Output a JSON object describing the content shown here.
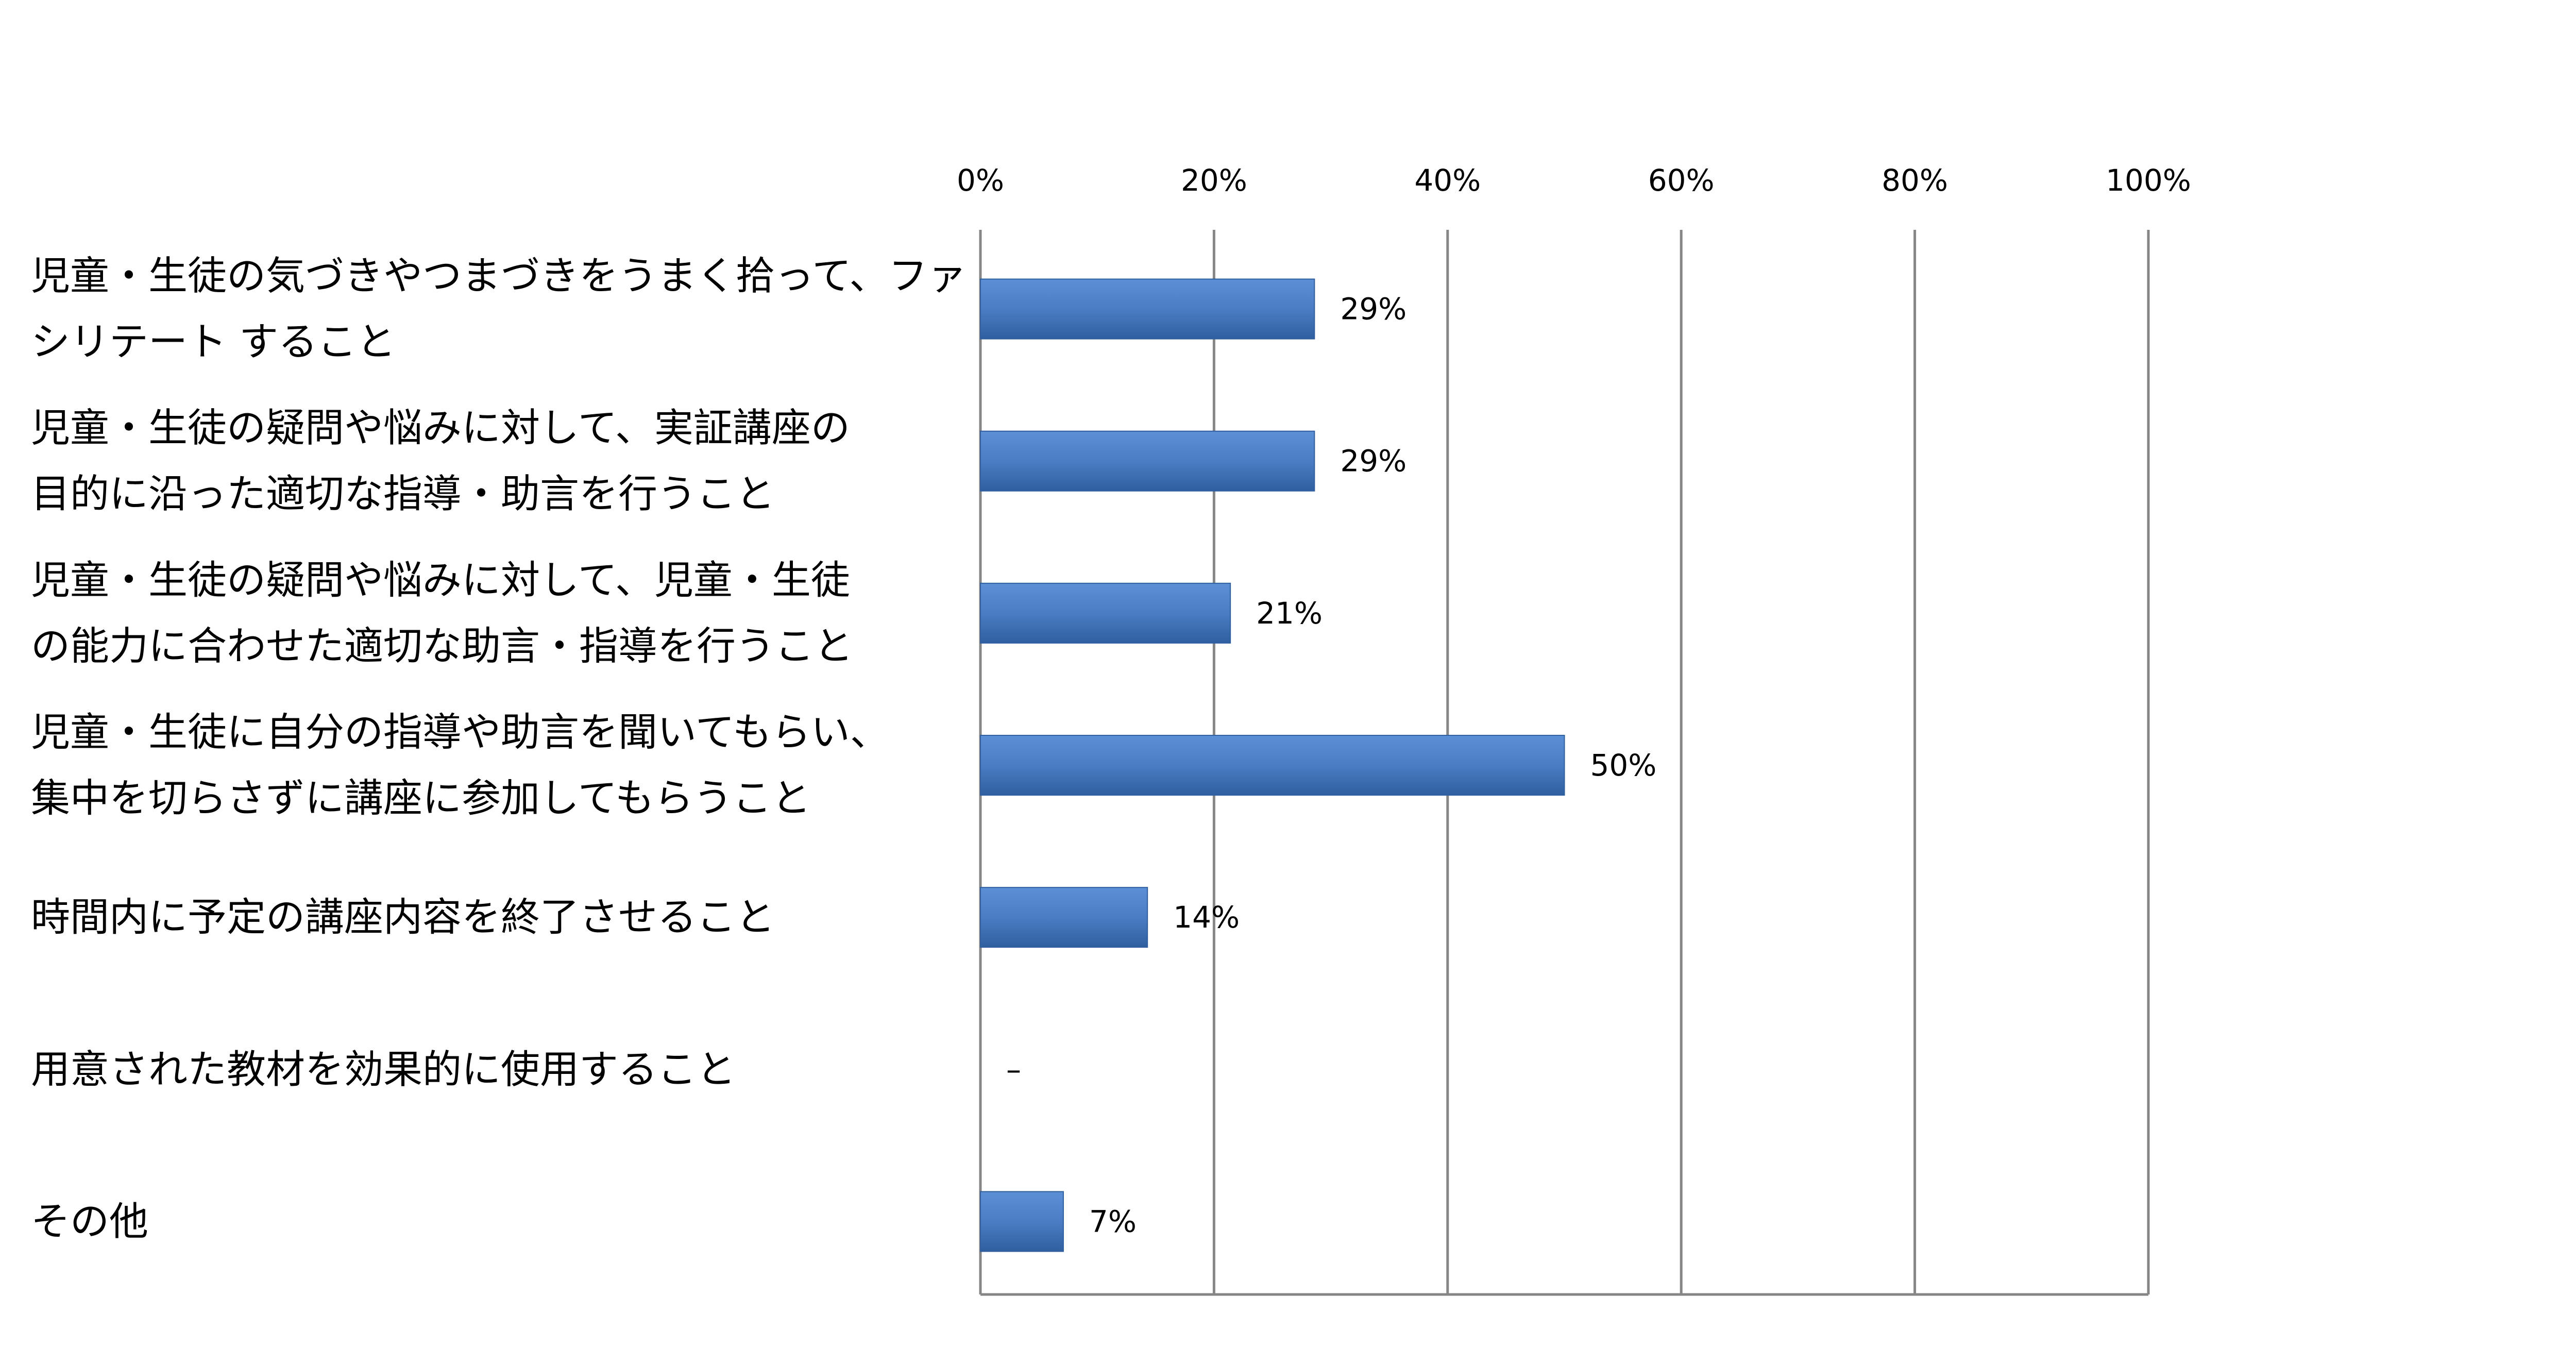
{
  "chart_data": {
    "type": "bar",
    "orientation": "horizontal",
    "title": "",
    "xlabel": "",
    "ylabel": "",
    "xlim": [
      0,
      100
    ],
    "ticks": [
      "0%",
      "20%",
      "40%",
      "60%",
      "80%",
      "100%"
    ],
    "tick_values": [
      0,
      20,
      40,
      60,
      80,
      100
    ],
    "grid": true,
    "legend": "none",
    "bar_color": "#4a7dc4",
    "categories": [
      [
        "児童・生徒の気づきやつまづきをうまく拾って、ファ",
        "シリテート すること"
      ],
      [
        "児童・生徒の疑問や悩みに対して、実証講座の",
        "目的に沿った適切な指導・助言を行うこと"
      ],
      [
        "児童・生徒の疑問や悩みに対して、児童・生徒",
        "の能力に合わせた適切な助言・指導を行うこと"
      ],
      [
        "児童・生徒に自分の指導や助言を聞いてもらい、",
        "集中を切らさずに講座に参加してもらうこと"
      ],
      [
        "時間内に予定の講座内容を終了させること"
      ],
      [
        "用意された教材を効果的に使用すること"
      ],
      [
        "その他"
      ]
    ],
    "values": [
      28.6,
      28.6,
      21.4,
      50,
      14.3,
      0,
      7.1
    ],
    "data_labels": [
      "29%",
      "29%",
      "21%",
      "50%",
      "14%",
      "–",
      "7%"
    ]
  }
}
